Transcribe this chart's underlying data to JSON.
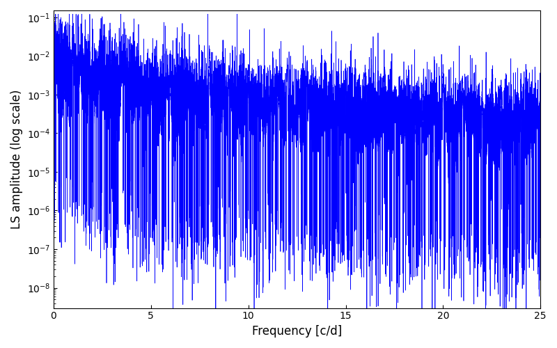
{
  "title": "",
  "xlabel": "Frequency [c/d]",
  "ylabel": "LS amplitude (log scale)",
  "xlim": [
    0,
    25
  ],
  "ylim": [
    3e-09,
    0.15
  ],
  "line_color": "#0000ff",
  "line_width": 0.5,
  "background_color": "#ffffff",
  "fig_width": 8.0,
  "fig_height": 5.0,
  "dpi": 100,
  "seed": 42
}
